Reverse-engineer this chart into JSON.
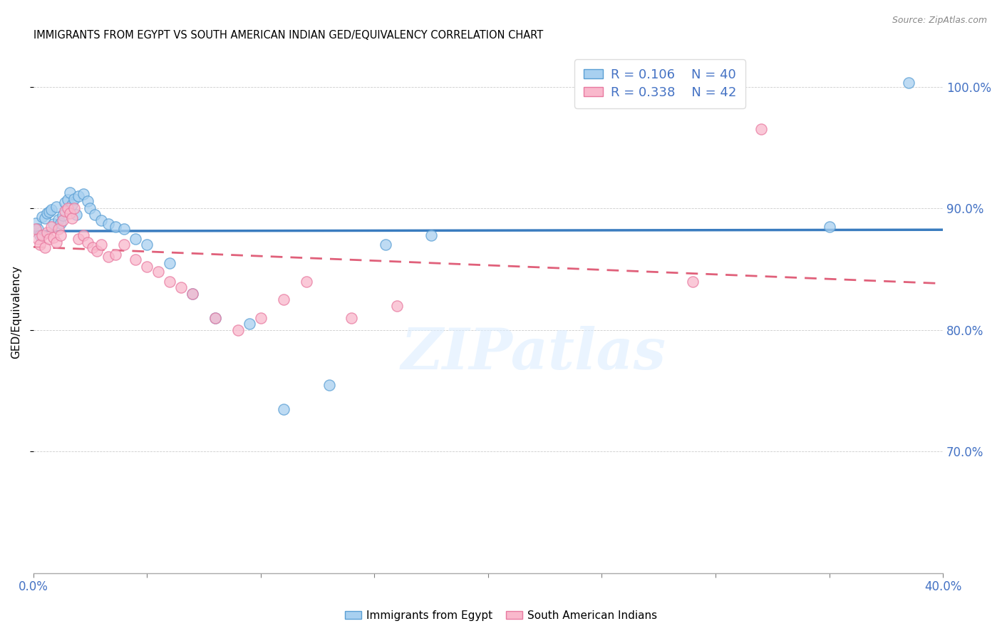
{
  "title": "IMMIGRANTS FROM EGYPT VS SOUTH AMERICAN INDIAN GED/EQUIVALENCY CORRELATION CHART",
  "source": "Source: ZipAtlas.com",
  "ylabel": "GED/Equivalency",
  "watermark": "ZIPatlas",
  "xlim": [
    0.0,
    0.4
  ],
  "ylim": [
    0.6,
    1.03
  ],
  "xticks": [
    0.0,
    0.05,
    0.1,
    0.15,
    0.2,
    0.25,
    0.3,
    0.35,
    0.4
  ],
  "yticks": [
    0.7,
    0.8,
    0.9,
    1.0
  ],
  "ytick_labels": [
    "70.0%",
    "80.0%",
    "90.0%",
    "100.0%"
  ],
  "color_egypt": "#a8d0f0",
  "color_south_american": "#f9b8cc",
  "color_egypt_dot_edge": "#5a9fd4",
  "color_south_dot_edge": "#e87aa0",
  "color_egypt_line": "#3a7cbf",
  "color_south_american_line": "#e0607a",
  "color_tick": "#4472c4",
  "egypt_x": [
    0.001,
    0.002,
    0.003,
    0.004,
    0.005,
    0.006,
    0.007,
    0.008,
    0.009,
    0.01,
    0.011,
    0.012,
    0.013,
    0.014,
    0.015,
    0.016,
    0.017,
    0.018,
    0.019,
    0.02,
    0.022,
    0.024,
    0.025,
    0.027,
    0.03,
    0.033,
    0.036,
    0.04,
    0.045,
    0.05,
    0.06,
    0.07,
    0.08,
    0.095,
    0.11,
    0.13,
    0.155,
    0.175,
    0.35,
    0.385
  ],
  "egypt_y": [
    0.888,
    0.883,
    0.878,
    0.893,
    0.892,
    0.896,
    0.897,
    0.899,
    0.887,
    0.901,
    0.891,
    0.888,
    0.894,
    0.905,
    0.907,
    0.913,
    0.903,
    0.908,
    0.895,
    0.91,
    0.912,
    0.906,
    0.9,
    0.895,
    0.89,
    0.887,
    0.885,
    0.883,
    0.875,
    0.87,
    0.855,
    0.83,
    0.81,
    0.805,
    0.735,
    0.755,
    0.87,
    0.878,
    0.885,
    1.003
  ],
  "south_american_x": [
    0.001,
    0.002,
    0.003,
    0.004,
    0.005,
    0.006,
    0.007,
    0.008,
    0.009,
    0.01,
    0.011,
    0.012,
    0.013,
    0.014,
    0.015,
    0.016,
    0.017,
    0.018,
    0.02,
    0.022,
    0.024,
    0.026,
    0.028,
    0.03,
    0.033,
    0.036,
    0.04,
    0.045,
    0.05,
    0.055,
    0.06,
    0.065,
    0.07,
    0.08,
    0.09,
    0.1,
    0.11,
    0.12,
    0.14,
    0.16,
    0.29,
    0.32
  ],
  "south_american_y": [
    0.883,
    0.875,
    0.87,
    0.878,
    0.868,
    0.88,
    0.875,
    0.885,
    0.876,
    0.872,
    0.883,
    0.878,
    0.89,
    0.898,
    0.9,
    0.896,
    0.892,
    0.9,
    0.875,
    0.878,
    0.872,
    0.868,
    0.865,
    0.87,
    0.86,
    0.862,
    0.87,
    0.858,
    0.852,
    0.848,
    0.84,
    0.835,
    0.83,
    0.81,
    0.8,
    0.81,
    0.825,
    0.84,
    0.81,
    0.82,
    0.84,
    0.965
  ],
  "legend_egypt_label": "R = 0.106    N = 40",
  "legend_south_label": "R = 0.338    N = 42",
  "bottom_legend_egypt": "Immigrants from Egypt",
  "bottom_legend_south": "South American Indians"
}
